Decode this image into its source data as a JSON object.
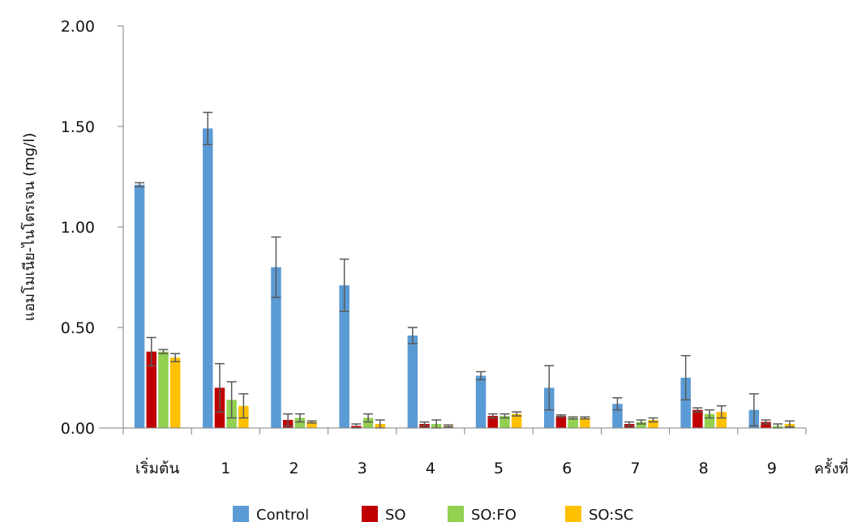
{
  "chart_data": {
    "type": "bar",
    "title": "",
    "xlabel": "ครั้งที่",
    "ylabel": "แอมโมเนีย-ไนโตรเจน (mg/l)",
    "ylim": [
      0,
      2
    ],
    "yticks": [
      "0.00",
      "0.50",
      "1.00",
      "1.50",
      "2.00"
    ],
    "categories": [
      "เริ่มต้น",
      "1",
      "2",
      "3",
      "4",
      "5",
      "6",
      "7",
      "8",
      "9"
    ],
    "legend_position": "bottom",
    "grid": false,
    "series": [
      {
        "name": "Control",
        "color": "#5b9bd5",
        "values": [
          1.21,
          1.49,
          0.8,
          0.71,
          0.46,
          0.26,
          0.2,
          0.12,
          0.25,
          0.09
        ],
        "errors": [
          0.01,
          0.08,
          0.15,
          0.13,
          0.04,
          0.02,
          0.11,
          0.03,
          0.11,
          0.08
        ]
      },
      {
        "name": "SO",
        "color": "#c00000",
        "values": [
          0.38,
          0.2,
          0.04,
          0.01,
          0.02,
          0.06,
          0.06,
          0.02,
          0.09,
          0.03
        ],
        "errors": [
          0.07,
          0.12,
          0.03,
          0.01,
          0.01,
          0.01,
          0.005,
          0.01,
          0.01,
          0.01
        ]
      },
      {
        "name": "SO:FO",
        "color": "#92d050",
        "values": [
          0.38,
          0.14,
          0.05,
          0.05,
          0.02,
          0.06,
          0.05,
          0.03,
          0.07,
          0.01
        ],
        "errors": [
          0.01,
          0.09,
          0.02,
          0.02,
          0.02,
          0.01,
          0.005,
          0.01,
          0.02,
          0.01
        ]
      },
      {
        "name": "SO:SC",
        "color": "#ffc000",
        "values": [
          0.35,
          0.11,
          0.03,
          0.02,
          0.01,
          0.07,
          0.05,
          0.04,
          0.08,
          0.02
        ],
        "errors": [
          0.02,
          0.06,
          0.005,
          0.02,
          0.005,
          0.01,
          0.005,
          0.01,
          0.03,
          0.015
        ]
      }
    ]
  }
}
